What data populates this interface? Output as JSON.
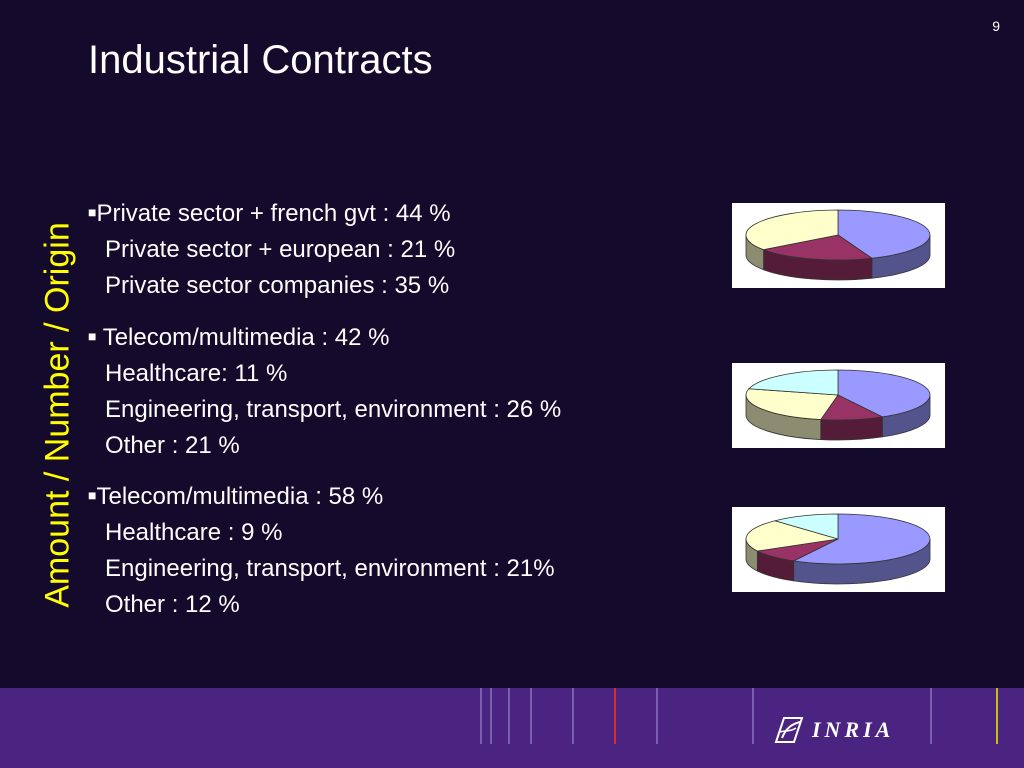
{
  "slide": {
    "number": "9",
    "title": "Industrial Contracts",
    "side_label": "Amount / Number / Origin"
  },
  "groups": [
    {
      "items": [
        "Private sector + french gvt : 44 %",
        "Private sector + european : 21 %",
        "Private sector companies : 35 %"
      ]
    },
    {
      "items": [
        "Telecom/multimedia : 42 %",
        "Healthcare: 11 %",
        "Engineering, transport, environment : 26 %",
        "Other : 21 %"
      ]
    },
    {
      "items": [
        "Telecom/multimedia : 58 %",
        "Healthcare : 9 %",
        "Engineering, transport, environment : 21%",
        "Other : 12 %"
      ]
    }
  ],
  "chart_data": [
    {
      "type": "pie",
      "categories": [
        "Private sector + french gvt",
        "Private sector + european",
        "Private sector companies"
      ],
      "values": [
        44,
        21,
        35
      ],
      "colors": [
        "#9999ff",
        "#993366",
        "#ffffcc"
      ]
    },
    {
      "type": "pie",
      "categories": [
        "Telecom/multimedia",
        "Healthcare",
        "Engineering, transport, environment",
        "Other"
      ],
      "values": [
        42,
        11,
        26,
        21
      ],
      "colors": [
        "#9999ff",
        "#993366",
        "#ffffcc",
        "#ccffff"
      ]
    },
    {
      "type": "pie",
      "categories": [
        "Telecom/multimedia",
        "Healthcare",
        "Engineering, transport, environment",
        "Other"
      ],
      "values": [
        58,
        9,
        21,
        12
      ],
      "colors": [
        "#9999ff",
        "#993366",
        "#ffffcc",
        "#ccffff"
      ]
    }
  ],
  "footer": {
    "logo_text": "INRIA",
    "logo_icon": "inria-logo-icon"
  }
}
